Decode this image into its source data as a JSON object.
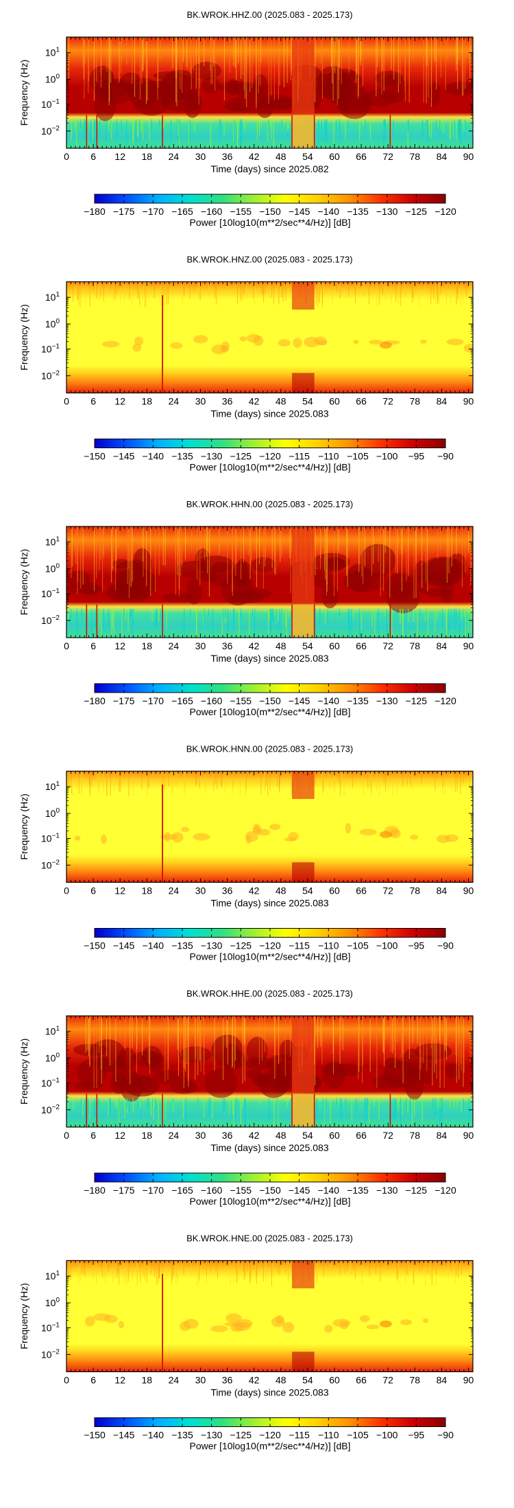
{
  "colormap": {
    "stops": [
      "#0000cc",
      "#0050ff",
      "#00b0ff",
      "#00e0d0",
      "#30e080",
      "#a0f030",
      "#ffff00",
      "#ffd000",
      "#ff9000",
      "#ff3000",
      "#cc0000",
      "#8c0000"
    ],
    "background_warm": [
      "#ffff33",
      "#ffd21e",
      "#ff8a10",
      "#e8280a",
      "#b80000"
    ]
  },
  "panels": [
    {
      "title": "BK.WROK.HHZ.00 (2025.083 - 2025.173)",
      "xlabel": "Time (days) since 2025.082",
      "ylabel": "Frequency (Hz)",
      "colorbar_label": "Power [10log10(m**2/sec**4/Hz)] [dB]",
      "colorbar_ticks": [
        "−180",
        "−175",
        "−170",
        "−165",
        "−160",
        "−155",
        "−150",
        "−145",
        "−140",
        "−135",
        "−130",
        "−125",
        "−120"
      ],
      "variant": "hh"
    },
    {
      "title": "BK.WROK.HNZ.00 (2025.083 - 2025.173)",
      "xlabel": "Time (days) since 2025.083",
      "ylabel": "Frequency (Hz)",
      "colorbar_label": "Power [10log10(m**2/sec**4/Hz)] [dB]",
      "colorbar_ticks": [
        "−150",
        "−145",
        "−140",
        "−135",
        "−130",
        "−125",
        "−120",
        "−115",
        "−110",
        "−105",
        "−100",
        "−95",
        "−90"
      ],
      "variant": "hn"
    },
    {
      "title": "BK.WROK.HHN.00 (2025.083 - 2025.173)",
      "xlabel": "Time (days) since 2025.083",
      "ylabel": "Frequency (Hz)",
      "colorbar_label": "Power [10log10(m**2/sec**4/Hz)] [dB]",
      "colorbar_ticks": [
        "−180",
        "−175",
        "−170",
        "−165",
        "−160",
        "−155",
        "−150",
        "−145",
        "−140",
        "−135",
        "−130",
        "−125",
        "−120"
      ],
      "variant": "hh"
    },
    {
      "title": "BK.WROK.HNN.00 (2025.083 - 2025.173)",
      "xlabel": "Time (days) since 2025.083",
      "ylabel": "Frequency (Hz)",
      "colorbar_label": "Power [10log10(m**2/sec**4/Hz)] [dB]",
      "colorbar_ticks": [
        "−150",
        "−145",
        "−140",
        "−135",
        "−130",
        "−125",
        "−120",
        "−115",
        "−110",
        "−105",
        "−100",
        "−95",
        "−90"
      ],
      "variant": "hn"
    },
    {
      "title": "BK.WROK.HHE.00 (2025.083 - 2025.173)",
      "xlabel": "Time (days) since 2025.083",
      "ylabel": "Frequency (Hz)",
      "colorbar_label": "Power [10log10(m**2/sec**4/Hz)] [dB]",
      "colorbar_ticks": [
        "−180",
        "−175",
        "−170",
        "−165",
        "−160",
        "−155",
        "−150",
        "−145",
        "−140",
        "−135",
        "−130",
        "−125",
        "−120"
      ],
      "variant": "hh"
    },
    {
      "title": "BK.WROK.HNE.00 (2025.083 - 2025.173)",
      "xlabel": "Time (days) since 2025.083",
      "ylabel": "Frequency (Hz)",
      "colorbar_label": "Power [10log10(m**2/sec**4/Hz)] [dB]",
      "colorbar_ticks": [
        "−150",
        "−145",
        "−140",
        "−135",
        "−130",
        "−125",
        "−120",
        "−115",
        "−110",
        "−105",
        "−100",
        "−95",
        "−90"
      ],
      "variant": "hn"
    }
  ],
  "chart_data": [
    {
      "type": "heatmap",
      "title": "BK.WROK.HHZ.00 (2025.083 - 2025.173)",
      "xlabel": "Time (days) since 2025.082",
      "ylabel": "Frequency (Hz)",
      "xlim": [
        0,
        91
      ],
      "ylim": [
        0.003,
        50
      ],
      "yscale": "log",
      "xticks": [
        "0",
        "6",
        "12",
        "18",
        "24",
        "30",
        "36",
        "42",
        "48",
        "54",
        "60",
        "66",
        "72",
        "78",
        "84",
        "90"
      ],
      "yticks": [
        {
          "base": "10",
          "exp": "1"
        },
        {
          "base": "10",
          "exp": "0"
        },
        {
          "base": "10",
          "exp": "−1"
        },
        {
          "base": "10",
          "exp": "−2"
        }
      ],
      "colorbar": {
        "label": "Power [10log10(m**2/sec**4/Hz)] [dB]",
        "range": [
          -180,
          -120
        ]
      }
    },
    {
      "type": "heatmap",
      "title": "BK.WROK.HNZ.00 (2025.083 - 2025.173)",
      "xlabel": "Time (days) since 2025.083",
      "ylabel": "Frequency (Hz)",
      "xlim": [
        0,
        91
      ],
      "ylim": [
        0.003,
        50
      ],
      "yscale": "log",
      "xticks": [
        "0",
        "6",
        "12",
        "18",
        "24",
        "30",
        "36",
        "42",
        "48",
        "54",
        "60",
        "66",
        "72",
        "78",
        "84",
        "90"
      ],
      "yticks": [
        {
          "base": "10",
          "exp": "1"
        },
        {
          "base": "10",
          "exp": "0"
        },
        {
          "base": "10",
          "exp": "−1"
        },
        {
          "base": "10",
          "exp": "−2"
        }
      ],
      "colorbar": {
        "label": "Power [10log10(m**2/sec**4/Hz)] [dB]",
        "range": [
          -150,
          -90
        ]
      }
    },
    {
      "type": "heatmap",
      "title": "BK.WROK.HHN.00 (2025.083 - 2025.173)",
      "xlabel": "Time (days) since 2025.083",
      "ylabel": "Frequency (Hz)",
      "xlim": [
        0,
        91
      ],
      "ylim": [
        0.003,
        50
      ],
      "yscale": "log",
      "xticks": [
        "0",
        "6",
        "12",
        "18",
        "24",
        "30",
        "36",
        "42",
        "48",
        "54",
        "60",
        "66",
        "72",
        "78",
        "84",
        "90"
      ],
      "yticks": [
        {
          "base": "10",
          "exp": "1"
        },
        {
          "base": "10",
          "exp": "0"
        },
        {
          "base": "10",
          "exp": "−1"
        },
        {
          "base": "10",
          "exp": "−2"
        }
      ],
      "colorbar": {
        "label": "Power [10log10(m**2/sec**4/Hz)] [dB]",
        "range": [
          -180,
          -120
        ]
      }
    },
    {
      "type": "heatmap",
      "title": "BK.WROK.HNN.00 (2025.083 - 2025.173)",
      "xlabel": "Time (days) since 2025.083",
      "ylabel": "Frequency (Hz)",
      "xlim": [
        0,
        91
      ],
      "ylim": [
        0.003,
        50
      ],
      "yscale": "log",
      "xticks": [
        "0",
        "6",
        "12",
        "18",
        "24",
        "30",
        "36",
        "42",
        "48",
        "54",
        "60",
        "66",
        "72",
        "78",
        "84",
        "90"
      ],
      "yticks": [
        {
          "base": "10",
          "exp": "1"
        },
        {
          "base": "10",
          "exp": "0"
        },
        {
          "base": "10",
          "exp": "−1"
        },
        {
          "base": "10",
          "exp": "−2"
        }
      ],
      "colorbar": {
        "label": "Power [10log10(m**2/sec**4/Hz)] [dB]",
        "range": [
          -150,
          -90
        ]
      }
    },
    {
      "type": "heatmap",
      "title": "BK.WROK.HHE.00 (2025.083 - 2025.173)",
      "xlabel": "Time (days) since 2025.083",
      "ylabel": "Frequency (Hz)",
      "xlim": [
        0,
        91
      ],
      "ylim": [
        0.003,
        50
      ],
      "yscale": "log",
      "xticks": [
        "0",
        "6",
        "12",
        "18",
        "24",
        "30",
        "36",
        "42",
        "48",
        "54",
        "60",
        "66",
        "72",
        "78",
        "84",
        "90"
      ],
      "yticks": [
        {
          "base": "10",
          "exp": "1"
        },
        {
          "base": "10",
          "exp": "0"
        },
        {
          "base": "10",
          "exp": "−1"
        },
        {
          "base": "10",
          "exp": "−2"
        }
      ],
      "colorbar": {
        "label": "Power [10log10(m**2/sec**4/Hz)] [dB]",
        "range": [
          -180,
          -120
        ]
      }
    },
    {
      "type": "heatmap",
      "title": "BK.WROK.HNE.00 (2025.083 - 2025.173)",
      "xlabel": "Time (days) since 2025.083",
      "ylabel": "Frequency (Hz)",
      "xlim": [
        0,
        91
      ],
      "ylim": [
        0.003,
        50
      ],
      "yscale": "log",
      "xticks": [
        "0",
        "6",
        "12",
        "18",
        "24",
        "30",
        "36",
        "42",
        "48",
        "54",
        "60",
        "66",
        "72",
        "78",
        "84",
        "90"
      ],
      "yticks": [
        {
          "base": "10",
          "exp": "1"
        },
        {
          "base": "10",
          "exp": "0"
        },
        {
          "base": "10",
          "exp": "−1"
        },
        {
          "base": "10",
          "exp": "−2"
        }
      ],
      "colorbar": {
        "label": "Power [10log10(m**2/sec**4/Hz)] [dB]",
        "range": [
          -150,
          -90
        ]
      }
    }
  ]
}
